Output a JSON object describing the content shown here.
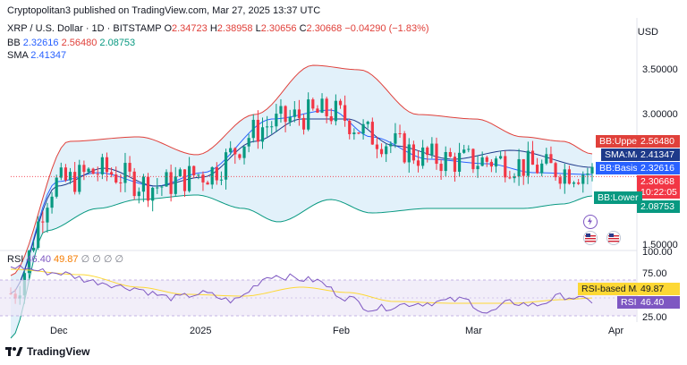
{
  "header": {
    "publisher": "Cryptopolitan3 published on TradingView.com, Mar 27, 2025 13:37 UTC",
    "symbol": "XRP / U.S. Dollar · 1D · BITSTAMP",
    "o_label": "O",
    "o_value": "2.34723",
    "h_label": "H",
    "h_value": "2.38958",
    "l_label": "L",
    "l_value": "2.30656",
    "c_label": "C",
    "c_value": "2.30668",
    "change": "−0.04290 (−1.83%)",
    "bb_label": "BB",
    "bb_basis": "2.32616",
    "bb_upper": "2.56480",
    "bb_lower": "2.08753",
    "sma_label": "SMA",
    "sma_value": "2.41347",
    "currency": "USD"
  },
  "price_axis": {
    "ticks": [
      "3.50000",
      "3.00000",
      "1.50000"
    ],
    "tag_bb_upper_label": "BB:Upper",
    "tag_bb_upper_value": "2.56480",
    "tag_sma_label": "SMA:MA",
    "tag_sma_value": "2.41347",
    "tag_bb_basis_label": "BB:Basis",
    "tag_bb_basis_value": "2.32616",
    "tag_price_value": "2.30668",
    "tag_countdown": "10:22:05",
    "tag_bb_lower_label": "BB:Lower",
    "tag_bb_lower_value": "2.08753"
  },
  "rsi": {
    "label": "RSI",
    "value": "46.40",
    "ma_value": "49.87",
    "extra": "∅ ∅ ∅ ∅",
    "ticks": [
      "100.00",
      "75.00",
      "25.00"
    ],
    "tag_ma_label": "RSI-based MA",
    "tag_ma_value": "49.87",
    "tag_rsi_label": "RSI",
    "tag_rsi_value": "46.40"
  },
  "time_axis": {
    "labels": [
      "Dec",
      "2025",
      "Feb",
      "Mar",
      "Apr"
    ]
  },
  "brand": "TradingView",
  "colors": {
    "up": "#089981",
    "down": "#f23645",
    "bb_upper": "#e0403a",
    "bb_lower": "#089981",
    "bb_fill": "#d8ecf8",
    "basis": "#2962ff",
    "sma": "#1e3a8a",
    "rsi": "#7e57c2",
    "rsi_ma": "#fdd835"
  }
}
